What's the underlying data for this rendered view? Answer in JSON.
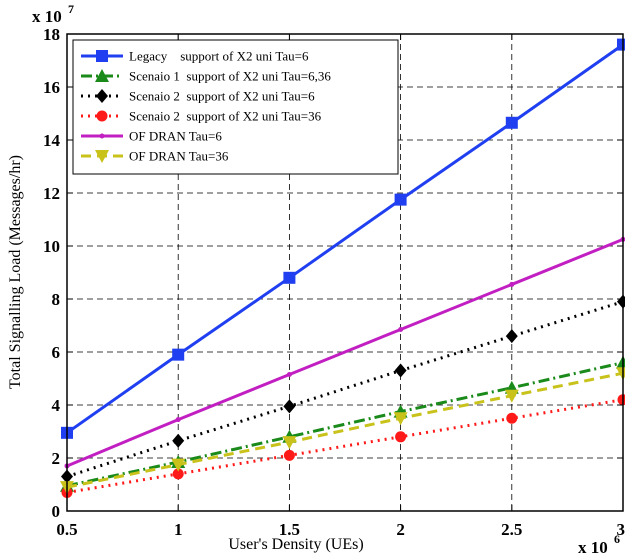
{
  "chart_data": {
    "type": "line",
    "xlabel": "User's Density (UEs)",
    "ylabel": "Total Signalling Load (Messages/hr)",
    "x_multiplier": "x 10",
    "x_multiplier_exp": "6",
    "y_multiplier": "x 10",
    "y_multiplier_exp": "7",
    "xlim": [
      0.5,
      3
    ],
    "ylim": [
      0,
      18
    ],
    "xticks": [
      0.5,
      1,
      1.5,
      2,
      2.5,
      3
    ],
    "xtick_labels": [
      "0.5",
      "1",
      "1.5",
      "2",
      "2.5",
      "3"
    ],
    "yticks": [
      0,
      2,
      4,
      6,
      8,
      10,
      12,
      14,
      16,
      18
    ],
    "ytick_labels": [
      "0",
      "2",
      "4",
      "6",
      "8",
      "10",
      "12",
      "14",
      "16",
      "18"
    ],
    "grid": true,
    "legend_position": "top-left",
    "x": [
      0.5,
      1,
      1.5,
      2,
      2.5,
      3
    ],
    "series": [
      {
        "name": "Legacy    support of X2 uni Tau=6",
        "values": [
          2.95,
          5.9,
          8.8,
          11.75,
          14.65,
          17.6
        ],
        "color": "#1f3ff0",
        "dash": "solid",
        "marker": "square",
        "width": 3
      },
      {
        "name": "Scenaio 1  support of X2 uni Tau=6,36",
        "values": [
          0.95,
          1.85,
          2.8,
          3.75,
          4.65,
          5.6
        ],
        "color": "#1a8a1a",
        "dash": "dashdot",
        "marker": "triangle-up",
        "width": 3
      },
      {
        "name": "Scenaio 2  support of X2 uni Tau=6",
        "values": [
          1.3,
          2.65,
          3.95,
          5.3,
          6.6,
          7.9
        ],
        "color": "#000000",
        "dash": "dot",
        "marker": "diamond",
        "width": 3
      },
      {
        "name": "Scenaio 2  support of X2 uni Tau=36",
        "values": [
          0.7,
          1.4,
          2.1,
          2.8,
          3.5,
          4.2
        ],
        "color": "#ff1a1a",
        "dash": "dot",
        "marker": "circle",
        "width": 3
      },
      {
        "name": "OF DRAN Tau=6",
        "values": [
          1.7,
          3.45,
          5.15,
          6.85,
          8.55,
          10.25
        ],
        "color": "#c21fc2",
        "dash": "solid",
        "marker": "point",
        "width": 3
      },
      {
        "name": "OF DRAN Tau=36",
        "values": [
          0.9,
          1.75,
          2.6,
          3.5,
          4.35,
          5.2
        ],
        "color": "#c8c21a",
        "dash": "dash",
        "marker": "triangle-down",
        "width": 3
      }
    ]
  }
}
